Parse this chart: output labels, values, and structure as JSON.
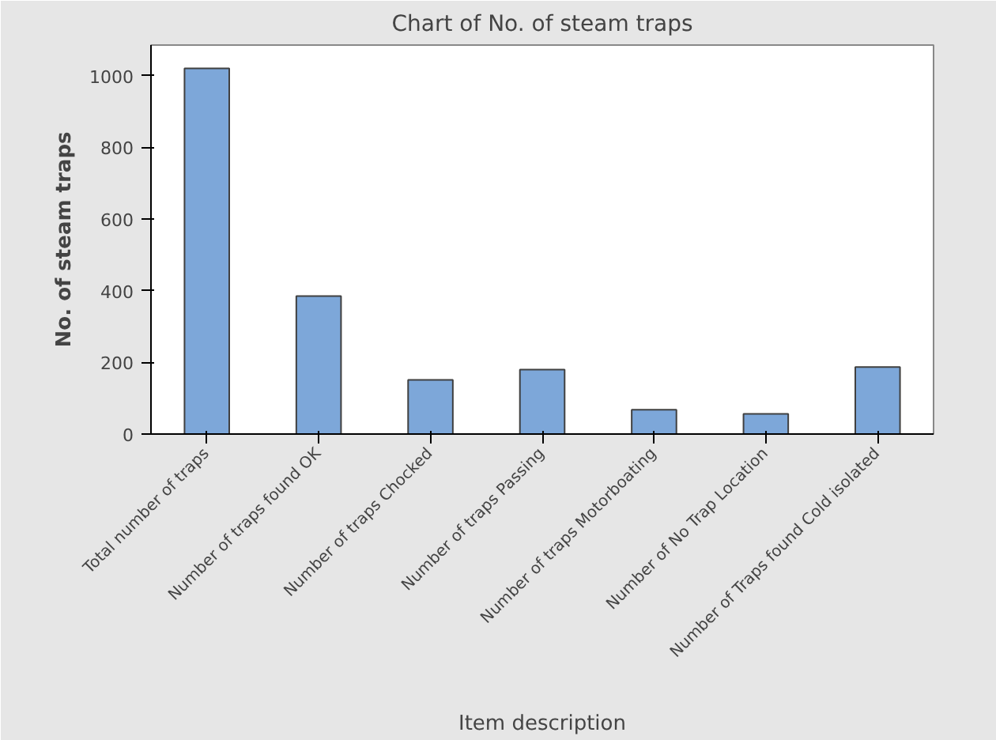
{
  "chart_data": {
    "type": "bar",
    "title": "Chart of No. of steam traps",
    "xlabel": "Item description",
    "ylabel": "No. of steam traps",
    "categories": [
      "Total number of traps",
      "Number of traps found OK",
      "Number of traps Chocked",
      "Number of traps Passing",
      "Number of traps Motorboating",
      "Number of No Trap Location",
      "Number of Traps found Cold isolated"
    ],
    "values": [
      1020,
      385,
      151,
      180,
      68,
      56,
      187
    ],
    "color": "#7da7d9",
    "ylim": [
      0,
      1085
    ],
    "yticks": [
      0,
      200,
      400,
      600,
      800,
      1000
    ],
    "grid": false
  }
}
